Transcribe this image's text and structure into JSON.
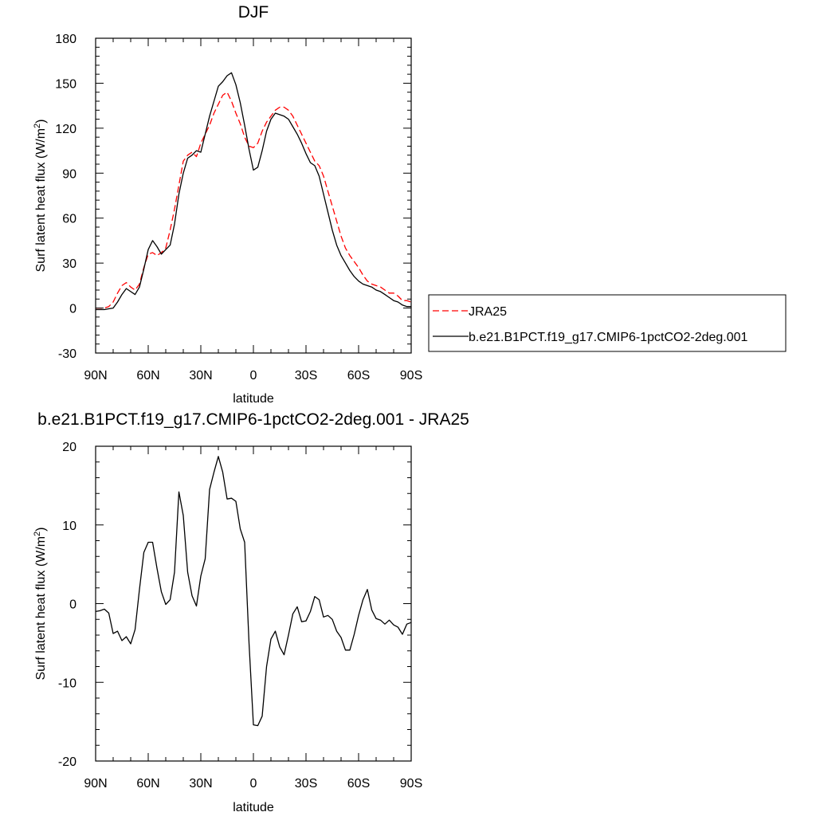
{
  "chart_data": [
    {
      "type": "line",
      "title": "DJF",
      "xlabel": "latitude",
      "ylabel": "Surf latent heat flux (W/m",
      "ylabel_sup": "2",
      "ylabel_tail": ")",
      "xlim": [
        90,
        -90
      ],
      "ylim": [
        -30,
        180
      ],
      "xticks": [
        {
          "value": 90,
          "label": "90N"
        },
        {
          "value": 60,
          "label": "60N"
        },
        {
          "value": 30,
          "label": "30N"
        },
        {
          "value": 0,
          "label": "0"
        },
        {
          "value": -30,
          "label": "30S"
        },
        {
          "value": -60,
          "label": "60S"
        },
        {
          "value": -90,
          "label": "90S"
        }
      ],
      "yticks": [
        {
          "value": 180,
          "label": "180"
        },
        {
          "value": 150,
          "label": "150"
        },
        {
          "value": 120,
          "label": "120"
        },
        {
          "value": 90,
          "label": "90"
        },
        {
          "value": 60,
          "label": "60"
        },
        {
          "value": 30,
          "label": "30"
        },
        {
          "value": 0,
          "label": "0"
        },
        {
          "value": -30,
          "label": "-30"
        }
      ],
      "legend_position": "right",
      "series": [
        {
          "name": "JRA25",
          "color": "#ff0000",
          "dash": "dashed",
          "points": [
            [
              90,
              0
            ],
            [
              87.5,
              0
            ],
            [
              85,
              0
            ],
            [
              82.5,
              1
            ],
            [
              80,
              4
            ],
            [
              77.5,
              10
            ],
            [
              75,
              15
            ],
            [
              72.5,
              17
            ],
            [
              70,
              14
            ],
            [
              67.5,
              12
            ],
            [
              65,
              16
            ],
            [
              62.5,
              27
            ],
            [
              60,
              36
            ],
            [
              57.5,
              37
            ],
            [
              55,
              35
            ],
            [
              52.5,
              37
            ],
            [
              50,
              40
            ],
            [
              47.5,
              52
            ],
            [
              45,
              66
            ],
            [
              42.5,
              82
            ],
            [
              40,
              98
            ],
            [
              37.5,
              102
            ],
            [
              35,
              104
            ],
            [
              32.5,
              101
            ],
            [
              30,
              110
            ],
            [
              27.5,
              116
            ],
            [
              25,
              122
            ],
            [
              22.5,
              130
            ],
            [
              20,
              136
            ],
            [
              17.5,
              142
            ],
            [
              15,
              144
            ],
            [
              12.5,
              138
            ],
            [
              10,
              130
            ],
            [
              7.5,
              123
            ],
            [
              5,
              114
            ],
            [
              2.5,
              108
            ],
            [
              0,
              107
            ],
            [
              -2.5,
              110
            ],
            [
              -5,
              118
            ],
            [
              -7.5,
              124
            ],
            [
              -10,
              128
            ],
            [
              -12.5,
              132
            ],
            [
              -15,
              134
            ],
            [
              -17.5,
              134
            ],
            [
              -20,
              132
            ],
            [
              -22.5,
              128
            ],
            [
              -25,
              122
            ],
            [
              -27.5,
              116
            ],
            [
              -30,
              110
            ],
            [
              -32.5,
              104
            ],
            [
              -35,
              98
            ],
            [
              -37.5,
              95
            ],
            [
              -40,
              88
            ],
            [
              -42.5,
              78
            ],
            [
              -45,
              68
            ],
            [
              -47.5,
              58
            ],
            [
              -50,
              48
            ],
            [
              -52.5,
              40
            ],
            [
              -55,
              35
            ],
            [
              -57.5,
              31
            ],
            [
              -60,
              27
            ],
            [
              -62.5,
              22
            ],
            [
              -65,
              18
            ],
            [
              -67.5,
              16
            ],
            [
              -70,
              15
            ],
            [
              -72.5,
              14
            ],
            [
              -75,
              12
            ],
            [
              -77.5,
              10
            ],
            [
              -80,
              10
            ],
            [
              -82.5,
              8
            ],
            [
              -85,
              5
            ],
            [
              -87.5,
              5
            ],
            [
              -90,
              4
            ]
          ]
        },
        {
          "name": "b.e21.B1PCT.f19_g17.CMIP6-1pctCO2-2deg.001",
          "color": "#000000",
          "dash": "solid",
          "points": [
            [
              90,
              -1
            ],
            [
              87.5,
              -1
            ],
            [
              85,
              -1
            ],
            [
              82.5,
              -0.5
            ],
            [
              80,
              0
            ],
            [
              77.5,
              4
            ],
            [
              75,
              9
            ],
            [
              72.5,
              13
            ],
            [
              70,
              11
            ],
            [
              67.5,
              9
            ],
            [
              65,
              14
            ],
            [
              62.5,
              26
            ],
            [
              60,
              39
            ],
            [
              57.5,
              45
            ],
            [
              55,
              41
            ],
            [
              52.5,
              36
            ],
            [
              50,
              39
            ],
            [
              47.5,
              42
            ],
            [
              45,
              56
            ],
            [
              42.5,
              76
            ],
            [
              40,
              90
            ],
            [
              37.5,
              100
            ],
            [
              35,
              102
            ],
            [
              32.5,
              105
            ],
            [
              30,
              104
            ],
            [
              27.5,
              116
            ],
            [
              25,
              128
            ],
            [
              22.5,
              138
            ],
            [
              20,
              148
            ],
            [
              17.5,
              151
            ],
            [
              15,
              155
            ],
            [
              12.5,
              157
            ],
            [
              10,
              149
            ],
            [
              7.5,
              137
            ],
            [
              5,
              122
            ],
            [
              2.5,
              106
            ],
            [
              0,
              92
            ],
            [
              -2.5,
              94
            ],
            [
              -5,
              105
            ],
            [
              -7.5,
              118
            ],
            [
              -10,
              126
            ],
            [
              -12.5,
              130
            ],
            [
              -15,
              129
            ],
            [
              -17.5,
              128
            ],
            [
              -20,
              126
            ],
            [
              -22.5,
              121
            ],
            [
              -25,
              116
            ],
            [
              -27.5,
              110
            ],
            [
              -30,
              103
            ],
            [
              -32.5,
              97
            ],
            [
              -35,
              95
            ],
            [
              -37.5,
              88
            ],
            [
              -40,
              76
            ],
            [
              -42.5,
              64
            ],
            [
              -45,
              52
            ],
            [
              -47.5,
              42
            ],
            [
              -50,
              35
            ],
            [
              -52.5,
              30
            ],
            [
              -55,
              25
            ],
            [
              -57.5,
              21
            ],
            [
              -60,
              18
            ],
            [
              -62.5,
              16
            ],
            [
              -65,
              15
            ],
            [
              -67.5,
              14
            ],
            [
              -70,
              12
            ],
            [
              -72.5,
              11
            ],
            [
              -75,
              9
            ],
            [
              -77.5,
              7
            ],
            [
              -80,
              5
            ],
            [
              -82.5,
              4
            ],
            [
              -85,
              2
            ],
            [
              -87.5,
              1
            ],
            [
              -90,
              1
            ]
          ]
        }
      ]
    },
    {
      "type": "line",
      "title": "b.e21.B1PCT.f19_g17.CMIP6-1pctCO2-2deg.001 - JRA25",
      "xlabel": "latitude",
      "ylabel": "Surf latent heat flux (W/m",
      "ylabel_sup": "2",
      "ylabel_tail": ")",
      "xlim": [
        90,
        -90
      ],
      "ylim": [
        -20,
        20
      ],
      "xticks": [
        {
          "value": 90,
          "label": "90N"
        },
        {
          "value": 60,
          "label": "60N"
        },
        {
          "value": 30,
          "label": "30N"
        },
        {
          "value": 0,
          "label": "0"
        },
        {
          "value": -30,
          "label": "30S"
        },
        {
          "value": -60,
          "label": "60S"
        },
        {
          "value": -90,
          "label": "90S"
        }
      ],
      "yticks": [
        {
          "value": 20,
          "label": "20"
        },
        {
          "value": 10,
          "label": "10"
        },
        {
          "value": 0,
          "label": "0"
        },
        {
          "value": -10,
          "label": "-10"
        },
        {
          "value": -20,
          "label": "-20"
        }
      ],
      "series": [
        {
          "color": "#000000",
          "dash": "solid",
          "points": [
            [
              90,
              -1.0
            ],
            [
              87.5,
              -0.9
            ],
            [
              85,
              -0.7
            ],
            [
              82.5,
              -1.2
            ],
            [
              80,
              -3.8
            ],
            [
              77.5,
              -3.5
            ],
            [
              75,
              -4.7
            ],
            [
              72.5,
              -4.2
            ],
            [
              70,
              -5.1
            ],
            [
              67.5,
              -3.3
            ],
            [
              65,
              1.8
            ],
            [
              62.5,
              6.5
            ],
            [
              60,
              7.8
            ],
            [
              57.5,
              7.8
            ],
            [
              55,
              4.5
            ],
            [
              52.5,
              1.5
            ],
            [
              50,
              -0.1
            ],
            [
              47.5,
              0.5
            ],
            [
              45,
              4.0
            ],
            [
              42.5,
              14.2
            ],
            [
              40,
              11.2
            ],
            [
              37.5,
              4.0
            ],
            [
              35,
              1.0
            ],
            [
              32.5,
              -0.3
            ],
            [
              30,
              3.5
            ],
            [
              27.5,
              5.7
            ],
            [
              25,
              14.5
            ],
            [
              22.5,
              16.7
            ],
            [
              20,
              18.7
            ],
            [
              17.5,
              16.7
            ],
            [
              15,
              13.3
            ],
            [
              12.5,
              13.4
            ],
            [
              10,
              13.0
            ],
            [
              7.5,
              9.5
            ],
            [
              5,
              7.8
            ],
            [
              2.5,
              -5.0
            ],
            [
              0,
              -15.4
            ],
            [
              -2.5,
              -15.5
            ],
            [
              -5,
              -14.3
            ],
            [
              -7.5,
              -8.0
            ],
            [
              -10,
              -4.5
            ],
            [
              -12.5,
              -3.5
            ],
            [
              -15,
              -5.5
            ],
            [
              -17.5,
              -6.5
            ],
            [
              -20,
              -4.0
            ],
            [
              -22.5,
              -1.3
            ],
            [
              -25,
              -0.4
            ],
            [
              -27.5,
              -2.3
            ],
            [
              -30,
              -2.2
            ],
            [
              -32.5,
              -1.0
            ],
            [
              -35,
              0.9
            ],
            [
              -37.5,
              0.5
            ],
            [
              -40,
              -1.7
            ],
            [
              -42.5,
              -1.5
            ],
            [
              -45,
              -2.0
            ],
            [
              -47.5,
              -3.5
            ],
            [
              -50,
              -4.3
            ],
            [
              -52.5,
              -5.9
            ],
            [
              -55,
              -5.9
            ],
            [
              -57.5,
              -3.9
            ],
            [
              -60,
              -1.5
            ],
            [
              -62.5,
              0.5
            ],
            [
              -65,
              1.8
            ],
            [
              -67.5,
              -0.8
            ],
            [
              -70,
              -1.9
            ],
            [
              -72.5,
              -2.1
            ],
            [
              -75,
              -2.6
            ],
            [
              -77.5,
              -2.1
            ],
            [
              -80,
              -2.7
            ],
            [
              -82.5,
              -3.0
            ],
            [
              -85,
              -3.9
            ],
            [
              -87.5,
              -2.6
            ],
            [
              -90,
              -2.4
            ]
          ]
        }
      ]
    }
  ]
}
